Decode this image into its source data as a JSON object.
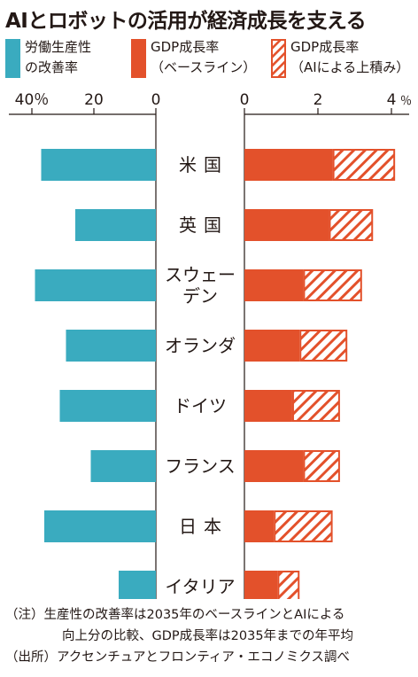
{
  "title": "AIとロボットの活用が経済成長を支える",
  "legend": [
    {
      "line1": "労働生産性",
      "line2": "の改善率",
      "color": "#3aabbf",
      "pattern": "solid"
    },
    {
      "line1": "GDP成長率",
      "line2": "（ベースライン）",
      "color": "#e3512b",
      "pattern": "solid"
    },
    {
      "line1": "GDP成長率",
      "line2": "（AIによる上積み）",
      "color": "#e3512b",
      "pattern": "hatched"
    }
  ],
  "chart_data": {
    "type": "bar",
    "categories": [
      [
        "米",
        "国"
      ],
      [
        "英",
        "国"
      ],
      [
        "スウェー",
        "デン"
      ],
      [
        "オランダ"
      ],
      [
        "ドイツ"
      ],
      [
        "フランス"
      ],
      [
        "日",
        "本"
      ],
      [
        "イタリア"
      ]
    ],
    "left_panel": {
      "ticks": [
        "40％",
        "20",
        "0"
      ],
      "xlim": [
        0,
        42
      ],
      "series": [
        {
          "name": "労働生産性の改善率",
          "values": [
            37,
            26,
            39,
            29,
            31,
            21,
            36,
            12
          ]
        }
      ]
    },
    "right_panel": {
      "ticks": [
        "0",
        "2",
        "4"
      ],
      "xlim": [
        0,
        4.5
      ],
      "stacked": true,
      "series": [
        {
          "name": "GDP成長率（ベースライン）",
          "values": [
            2.4,
            2.3,
            1.6,
            1.5,
            1.3,
            1.6,
            0.8,
            0.9
          ]
        },
        {
          "name": "GDP成長率（AIによる上積み）",
          "values": [
            1.7,
            1.2,
            1.6,
            1.3,
            1.3,
            1.0,
            1.6,
            0.6
          ]
        }
      ]
    },
    "tick_suffix": "％"
  },
  "notes": {
    "line1": "（注）生産性の改善率は2035年のベースラインとAIによる",
    "line2": "向上分の比較、GDP成長率は2035年までの年平均",
    "line3": "（出所）アクセンチュアとフロンティア・エコノミクス調べ"
  }
}
